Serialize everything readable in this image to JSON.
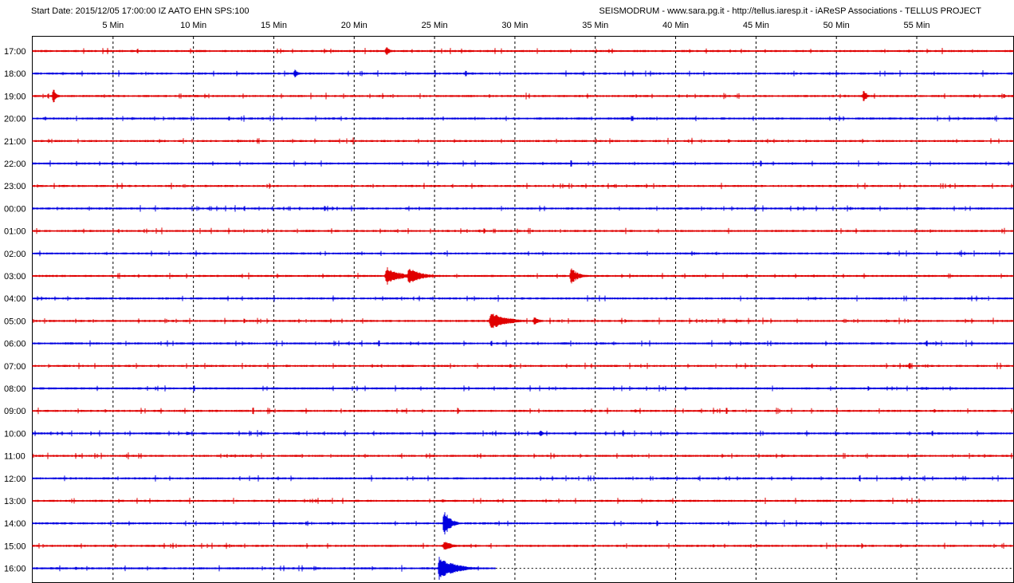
{
  "header": {
    "left": "Start Date: 2015/12/05 17:00:00 IZ AATO EHN SPS:100",
    "right": "SEISMODRUM - www.sara.pg.it - http://tellus.iaresp.it - iAReSP Associations - TELLUS PROJECT"
  },
  "chart_data": {
    "type": "line",
    "x_unit": "minutes",
    "xlim": [
      0,
      61
    ],
    "x_ticks": [
      {
        "value": 5,
        "label": "5 Min"
      },
      {
        "value": 10,
        "label": "10 Min"
      },
      {
        "value": 15,
        "label": "15 Min"
      },
      {
        "value": 20,
        "label": "20 Min"
      },
      {
        "value": 25,
        "label": "25 Min"
      },
      {
        "value": 30,
        "label": "30 Min"
      },
      {
        "value": 35,
        "label": "35 Min"
      },
      {
        "value": 40,
        "label": "40 Min"
      },
      {
        "value": 45,
        "label": "45 Min"
      },
      {
        "value": 50,
        "label": "50 Min"
      },
      {
        "value": 55,
        "label": "55 Min"
      }
    ],
    "grid": true,
    "trace_colors": [
      "#e00000",
      "#0000e0"
    ],
    "rows": [
      {
        "hour": "17:00",
        "color": "#e00000",
        "events": [
          {
            "t": 22.0,
            "amp": 0.5,
            "dur": 0.8
          },
          {
            "t": 20.0,
            "amp": 0.15,
            "dur": 2
          },
          {
            "t": 54.5,
            "amp": 0.15,
            "dur": 1.5
          }
        ]
      },
      {
        "hour": "18:00",
        "color": "#0000e0",
        "events": [
          {
            "t": 16.3,
            "amp": 0.55,
            "dur": 0.6
          },
          {
            "t": 14.5,
            "amp": 0.12,
            "dur": 1.5
          }
        ]
      },
      {
        "hour": "19:00",
        "color": "#e00000",
        "events": [
          {
            "t": 1.3,
            "amp": 0.95,
            "dur": 0.5
          },
          {
            "t": 51.7,
            "amp": 0.7,
            "dur": 0.6
          },
          {
            "t": 50.5,
            "amp": 0.15,
            "dur": 2
          }
        ]
      },
      {
        "hour": "20:00",
        "color": "#0000e0",
        "events": [
          {
            "t": 6.2,
            "amp": 0.2,
            "dur": 0.3
          },
          {
            "t": 36.7,
            "amp": 0.15,
            "dur": 1
          }
        ]
      },
      {
        "hour": "21:00",
        "color": "#e00000",
        "events": [
          {
            "t": 43.3,
            "amp": 0.25,
            "dur": 0.4
          },
          {
            "t": 45.0,
            "amp": 0.12,
            "dur": 3
          }
        ]
      },
      {
        "hour": "22:00",
        "color": "#0000e0",
        "events": [
          {
            "t": 2.7,
            "amp": 0.15,
            "dur": 1.5
          },
          {
            "t": 28.5,
            "amp": 0.15,
            "dur": 1
          }
        ]
      },
      {
        "hour": "23:00",
        "color": "#e00000",
        "events": []
      },
      {
        "hour": "00:00",
        "color": "#0000e0",
        "events": [
          {
            "t": 55.0,
            "amp": 0.18,
            "dur": 1.5
          }
        ]
      },
      {
        "hour": "01:00",
        "color": "#e00000",
        "events": []
      },
      {
        "hour": "02:00",
        "color": "#0000e0",
        "events": [
          {
            "t": 25.6,
            "amp": 0.18,
            "dur": 0.6
          }
        ]
      },
      {
        "hour": "03:00",
        "color": "#e00000",
        "events": [
          {
            "t": 22.0,
            "amp": 1.0,
            "dur": 2.5
          },
          {
            "t": 23.4,
            "amp": 0.9,
            "dur": 2.5
          },
          {
            "t": 33.5,
            "amp": 0.85,
            "dur": 1.5
          }
        ]
      },
      {
        "hour": "04:00",
        "color": "#0000e0",
        "events": [
          {
            "t": 25.3,
            "amp": 0.15,
            "dur": 0.5
          }
        ]
      },
      {
        "hour": "05:00",
        "color": "#e00000",
        "events": [
          {
            "t": 28.5,
            "amp": 1.0,
            "dur": 3
          },
          {
            "t": 31.2,
            "amp": 0.45,
            "dur": 1
          },
          {
            "t": 36.5,
            "amp": 0.15,
            "dur": 1
          }
        ]
      },
      {
        "hour": "06:00",
        "color": "#0000e0",
        "events": [
          {
            "t": 54.0,
            "amp": 0.12,
            "dur": 1.5
          }
        ]
      },
      {
        "hour": "07:00",
        "color": "#e00000",
        "events": [
          {
            "t": 15.8,
            "amp": 0.2,
            "dur": 0.5
          },
          {
            "t": 23.0,
            "amp": 0.18,
            "dur": 0.8
          },
          {
            "t": 29.7,
            "amp": 0.2,
            "dur": 1
          }
        ]
      },
      {
        "hour": "08:00",
        "color": "#0000e0",
        "events": [
          {
            "t": 55.3,
            "amp": 0.2,
            "dur": 1
          }
        ]
      },
      {
        "hour": "09:00",
        "color": "#e00000",
        "events": [
          {
            "t": 23.0,
            "amp": 0.2,
            "dur": 0.6
          },
          {
            "t": 37.5,
            "amp": 0.25,
            "dur": 0.6
          },
          {
            "t": 56.1,
            "amp": 0.25,
            "dur": 0.3
          }
        ]
      },
      {
        "hour": "10:00",
        "color": "#0000e0",
        "events": [
          {
            "t": 9.6,
            "amp": 0.22,
            "dur": 1
          },
          {
            "t": 31.6,
            "amp": 0.35,
            "dur": 0.5
          }
        ]
      },
      {
        "hour": "11:00",
        "color": "#e00000",
        "events": []
      },
      {
        "hour": "12:00",
        "color": "#0000e0",
        "events": [
          {
            "t": 39.5,
            "amp": 0.2,
            "dur": 0.6
          }
        ]
      },
      {
        "hour": "13:00",
        "color": "#e00000",
        "events": [
          {
            "t": 17.6,
            "amp": 0.22,
            "dur": 0.5
          },
          {
            "t": 25.5,
            "amp": 0.25,
            "dur": 0.4
          }
        ]
      },
      {
        "hour": "14:00",
        "color": "#0000e0",
        "events": [
          {
            "t": 25.6,
            "amp": 1.5,
            "dur": 1.2
          },
          {
            "t": 28.0,
            "amp": 0.15,
            "dur": 1.5
          }
        ]
      },
      {
        "hour": "15:00",
        "color": "#e00000",
        "events": [
          {
            "t": 25.6,
            "amp": 0.6,
            "dur": 1.5
          }
        ]
      },
      {
        "hour": "16:00",
        "color": "#0000e0",
        "events": [
          {
            "t": 25.3,
            "amp": 1.3,
            "dur": 3
          },
          {
            "t": 2.7,
            "amp": 0.25,
            "dur": 0.5
          }
        ],
        "end_minute": 28.8
      }
    ]
  }
}
